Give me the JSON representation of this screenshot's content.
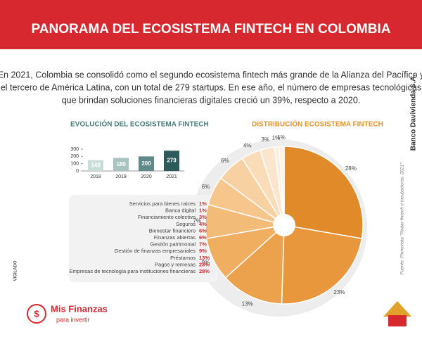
{
  "header": {
    "title": "PANORAMA DEL ECOSISTEMA FINTECH EN COLOMBIA"
  },
  "intro": [
    "En 2021, Colombia se consolidó como el segundo ecosistema fintech más grande de la Alianza del Pacífico y",
    "el tercero de América Latina, con un total de 279 startups. En ese año, el número de empresas tecnológicas",
    "que brindan soluciones financieras digitales creció un 39%, respecto a 2020."
  ],
  "side_text": "Banco Davivienda S.A.",
  "source": "Fuente: Finnovista \"Radar fintech e incubadoras, 2021\".",
  "vigilado": "VIGILADO",
  "logo": {
    "name": "Mis Finanzas",
    "tagline": "para invertir"
  },
  "chart_data": [
    {
      "type": "bar",
      "title": "EVOLUCIÓN DEL ECOSISTEMA FINTECH",
      "categories": [
        "2018",
        "2019",
        "2020",
        "2021"
      ],
      "values": [
        148,
        180,
        200,
        279
      ],
      "colors": [
        "#c8dcd8",
        "#a8c4c1",
        "#5e8a89",
        "#2d5b5b"
      ],
      "ylim": [
        0,
        300
      ],
      "yticks": [
        0,
        100,
        200,
        300
      ]
    },
    {
      "type": "pie",
      "title": "DISTRIBUCIÓN ECOSISTEMA FINTECH",
      "categories": [
        "Servicios para bienes raíces",
        "Banca digital",
        "Financiamiento colectivo",
        "Seguros",
        "Bienestar financiero",
        "Finanzas abiertas",
        "Gestión patrimonial",
        "Gestión de finanzas empresariales",
        "Préstamos",
        "Pagos y remesas",
        "Empresas de tecnología para instituciones financieras"
      ],
      "values": [
        1,
        1,
        3,
        4,
        6,
        6,
        7,
        9,
        13,
        23,
        28
      ],
      "value_labels": [
        "1%",
        "1%",
        "3%",
        "4%",
        "6%",
        "6%",
        "7%",
        "9%",
        "13%",
        "23%",
        "28%"
      ],
      "colors": [
        "#fdf1e2",
        "#fceedd",
        "#fbe6cd",
        "#fadcb8",
        "#f8d1a2",
        "#f6c68d",
        "#f3bb78",
        "#f0ae61",
        "#eca24c",
        "#e8973c",
        "#e08a2a"
      ]
    }
  ]
}
